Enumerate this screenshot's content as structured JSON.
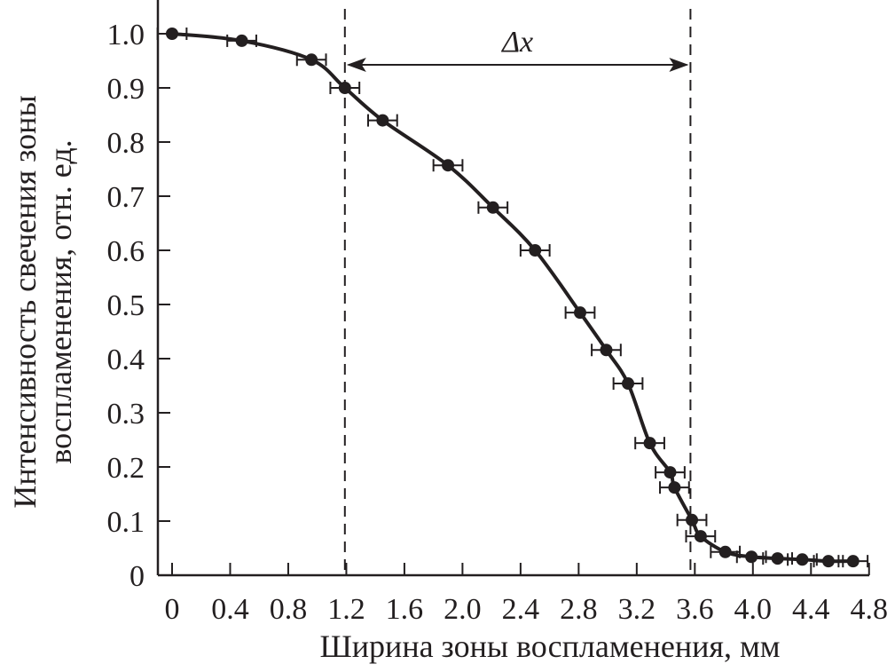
{
  "chart_data": {
    "type": "scatter",
    "xlabel": "Ширина зоны воспламенения, мм",
    "ylabel_lines": [
      "Интенсивность свечения зоны",
      "воспламенения, отн. ед."
    ],
    "xlim": [
      0,
      4.8
    ],
    "ylim": [
      0,
      1.0
    ],
    "xticks": [
      "0",
      "0.4",
      "0.8",
      "1.2",
      "1.6",
      "2.0",
      "2.4",
      "2.8",
      "3.2",
      "3.6",
      "4.0",
      "4.4",
      "4.8"
    ],
    "yticks": [
      "0",
      "0.1",
      "0.2",
      "0.3",
      "0.4",
      "0.5",
      "0.6",
      "0.7",
      "0.8",
      "0.9",
      "1.0"
    ],
    "grid": false,
    "x_error": 0.1,
    "points": [
      [
        0,
        1.0
      ],
      [
        0.48,
        0.987
      ],
      [
        0.96,
        0.952
      ],
      [
        1.19,
        0.9
      ],
      [
        1.45,
        0.84
      ],
      [
        1.9,
        0.757
      ],
      [
        2.21,
        0.679
      ],
      [
        2.5,
        0.6
      ],
      [
        2.81,
        0.485
      ],
      [
        2.99,
        0.416
      ],
      [
        3.14,
        0.354
      ],
      [
        3.29,
        0.244
      ],
      [
        3.43,
        0.19
      ],
      [
        3.46,
        0.162
      ],
      [
        3.58,
        0.102
      ],
      [
        3.64,
        0.072
      ],
      [
        3.81,
        0.043
      ],
      [
        3.99,
        0.034
      ],
      [
        4.17,
        0.031
      ],
      [
        4.34,
        0.029
      ],
      [
        4.52,
        0.026
      ],
      [
        4.69,
        0.026
      ]
    ],
    "vlines": [
      1.19,
      3.57
    ],
    "annotation": {
      "text": "Δx",
      "from": 1.19,
      "to": 3.57,
      "y": 0.94
    },
    "color": "#231f20"
  }
}
